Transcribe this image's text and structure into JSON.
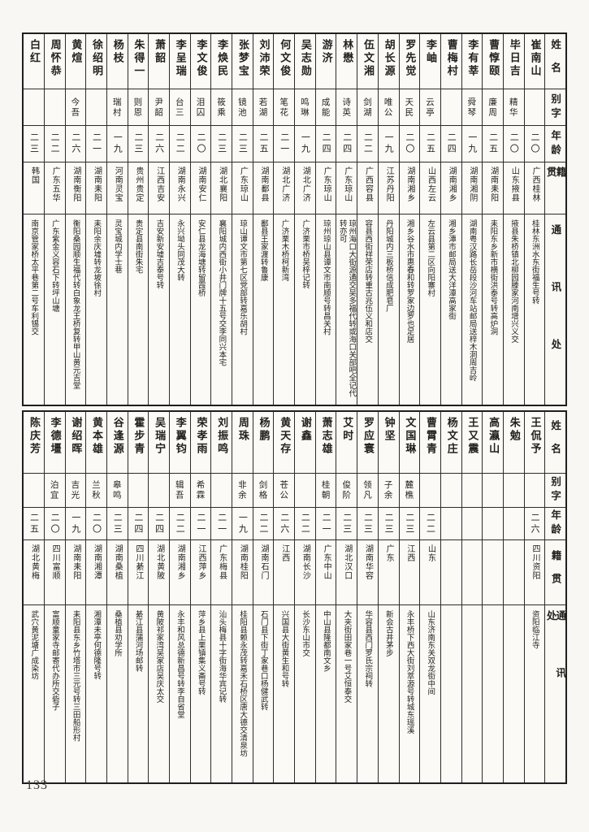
{
  "page_number": "133",
  "headers": {
    "name": "姓名",
    "zi": "别字",
    "age": "年龄",
    "origin": "籍贯",
    "addr": "通讯处"
  },
  "sections": [
    {
      "persons": [
        {
          "name": "崔南山",
          "zi": "",
          "age": "二〇",
          "origin": "广西桂林",
          "addr": "桂林东洲水东街福生号转"
        },
        {
          "name": "毕日吉",
          "zi": "精华",
          "age": "二〇",
          "origin": "山东掖县",
          "addr": "掖县朱桥镇北柳园滕家河南增兴义交"
        },
        {
          "name": "曹惇颐",
          "zi": "廉周",
          "age": "二五",
          "origin": "湖南耒阳",
          "addr": "耒阳东乡新市横街洪泰号转高炉洞"
        },
        {
          "name": "李有莘",
          "zi": "舜琴",
          "age": "一九",
          "origin": "湖南湘阴",
          "addr": "湖南粤汉路长岳段沙河车站邮局送梓木洞周吉岭"
        },
        {
          "name": "曹梅村",
          "zi": "",
          "age": "二四",
          "origin": "湖南湘乡",
          "addr": "湘乡潭市邮局送大洋潭高家街"
        },
        {
          "name": "李岫",
          "zi": "云亭",
          "age": "二五",
          "origin": "山西左云",
          "addr": "左云县第二区向阳寨村"
        },
        {
          "name": "罗先觉",
          "zi": "天民",
          "age": "二〇",
          "origin": "湖南湘乡",
          "addr": "湘乡谷水市惠春和转罗家边罗也足居"
        },
        {
          "name": "胡长源",
          "zi": "唯公",
          "age": "一九",
          "origin": "江苏丹阳",
          "addr": "丹阳城内三板桥信成肥皂厂"
        },
        {
          "name": "伍文湘",
          "zi": "剑湖",
          "age": "二二",
          "origin": "广西容县",
          "addr": "容县西街祥荣店转重古兆伍义和店交"
        },
        {
          "name": "林懋",
          "zi": "诗英",
          "age": "二四",
          "origin": "广东琼山",
          "addr": "琼州海口大街源通交吴多福代转或海口关部吧全记代转亦可"
        },
        {
          "name": "游济",
          "zi": "成能",
          "age": "二四",
          "origin": "广东琼山",
          "addr": "琼州琼山县谭文市南顺号转昌关村"
        },
        {
          "name": "吴志勋",
          "zi": "鸣琳",
          "age": "一九",
          "origin": "湖北广济",
          "addr": "广济栗市桥吴梓记转"
        },
        {
          "name": "何文俊",
          "zi": "笔花",
          "age": "二一",
          "origin": "湖北广济",
          "addr": "广济栗木桥柯新湾"
        },
        {
          "name": "刘沛荣",
          "zi": "若湖",
          "age": "二五",
          "origin": "湖南鄱县",
          "addr": "鄱县王家渡转鲁康"
        },
        {
          "name": "张梦宝",
          "zi": "镜池",
          "age": "二三",
          "origin": "广东琼山",
          "addr": "琼山谭文市第七区党部转嘉乐胡村"
        },
        {
          "name": "李焕民",
          "zi": "筱乘",
          "age": "二三",
          "origin": "湖北襄阳",
          "addr": "襄阳城内西街小井门牌十五号交李同兴本宅"
        },
        {
          "name": "李文俊",
          "zi": "泪囚",
          "age": "二〇",
          "origin": "湖南安仁",
          "addr": "安仁县龙海塘转留霞桥"
        },
        {
          "name": "李呈瑞",
          "zi": "台三",
          "age": "二二",
          "origin": "湖南永兴",
          "addr": "永兴坳头同茂大转"
        },
        {
          "name": "萧韶",
          "zi": "尹韶",
          "age": "二六",
          "origin": "江西吉安",
          "addr": "吉安新安墟吉泰号转"
        },
        {
          "name": "朱得一",
          "zi": "则恩",
          "age": "二三",
          "origin": "贵州贵定",
          "addr": "贵定县南街朱宅"
        },
        {
          "name": "杨枝",
          "zi": "瑞村",
          "age": "一九",
          "origin": "河南灵宝",
          "addr": "灵宝城内学士巷"
        },
        {
          "name": "徐绍明",
          "zi": "",
          "age": "二一",
          "origin": "湖南耒阳",
          "addr": "耒阳余庆墟转龙坡徐村"
        },
        {
          "name": "黄煊",
          "zi": "今吾",
          "age": "二六",
          "origin": "湖南衡阳",
          "addr": "衡阳桑园顺生福代转白象龙王桥复转甲山黄元吉堂"
        },
        {
          "name": "周怀恭",
          "zi": "",
          "age": "二二",
          "origin": "广东五华",
          "addr": "广东紫金义容石下转坪山塘"
        },
        {
          "name": "白红",
          "zi": "",
          "age": "二三",
          "origin": "韩国",
          "addr": "南京管家桥太平巷第二号车利锡交"
        }
      ]
    },
    {
      "persons": [
        {
          "name": "王侃予",
          "zi": "",
          "age": "二六",
          "origin": "四川资阳",
          "addr": "资阳临江寺"
        },
        {
          "name": "朱勉",
          "zi": "",
          "age": "",
          "origin": "",
          "addr": ""
        },
        {
          "name": "高瀛山",
          "zi": "",
          "age": "",
          "origin": "",
          "addr": ""
        },
        {
          "name": "王又震",
          "zi": "",
          "age": "",
          "origin": "",
          "addr": ""
        },
        {
          "name": "杨文庄",
          "zi": "",
          "age": "",
          "origin": "",
          "addr": ""
        },
        {
          "name": "曹霄青",
          "zi": "",
          "age": "二二",
          "origin": "山东",
          "addr": "山东济南东关双龙街中间"
        },
        {
          "name": "文国琳",
          "zi": "麓樵",
          "age": "二三",
          "origin": "江西",
          "addr": "永丰桥下西大街刘萃源号转城东瑶溪"
        },
        {
          "name": "钟坚",
          "zi": "子余",
          "age": "二三",
          "origin": "广东",
          "addr": "新会古井茅步"
        },
        {
          "name": "罗应寰",
          "zi": "领凡",
          "age": "二三",
          "origin": "湖南华容",
          "addr": "华容县西门罗氏宗祠转"
        },
        {
          "name": "艾时",
          "zi": "俊阶",
          "age": "二三",
          "origin": "湖北汉口",
          "addr": "大夹街田家巷一号艾恒泰交"
        },
        {
          "name": "萧志雄",
          "zi": "桂朝",
          "age": "二一",
          "origin": "广东中山",
          "addr": "中山县隆都南文乡"
        },
        {
          "name": "谢鑫",
          "zi": "",
          "age": "二二",
          "origin": "湖南长沙",
          "addr": "长沙东山市交"
        },
        {
          "name": "黄天存",
          "zi": "苍公",
          "age": "二六",
          "origin": "江西",
          "addr": "兴国县大街黄生和号转"
        },
        {
          "name": "杨鹏",
          "zi": "剑格",
          "age": "二二",
          "origin": "湖南石门",
          "addr": "石门县下街丁家巷口杨健武转"
        },
        {
          "name": "周珠",
          "zi": "非余",
          "age": "一九",
          "origin": "湖南桂阳",
          "addr": "桂阳县赖永茂转嘉禾石桥区唐大德交清泉坊"
        },
        {
          "name": "刘振鸣",
          "zi": "",
          "age": "二一",
          "origin": "广东梅县",
          "addr": "汕头梅县十字街海华宾记转"
        },
        {
          "name": "荣孝雨",
          "zi": "希霖",
          "age": "二一",
          "origin": "江西萍乡",
          "addr": "萍乡县上栗镇集义斋号转"
        },
        {
          "name": "李翼钧",
          "zi": "辑吾",
          "age": "二二",
          "origin": "湖南湘乡",
          "addr": "永丰和风总德新昌号转李自省堂"
        },
        {
          "name": "吴瑞宁",
          "zi": "",
          "age": "二四",
          "origin": "湖北黄陂",
          "addr": "黄陂祁家湾吴家店吴庆太交"
        },
        {
          "name": "霍步青",
          "zi": "",
          "age": "二四",
          "origin": "四川綦江",
          "addr": "綦江县蒲河场邮转"
        },
        {
          "name": "谷逢源",
          "zi": "皋鸣",
          "age": "二三",
          "origin": "湖南桑植",
          "addr": "桑植县劝学所"
        },
        {
          "name": "黄本雄",
          "zi": "兰秋",
          "age": "二〇",
          "origin": "湖南湘潭",
          "addr": "湘潭未亭何德隆号转"
        },
        {
          "name": "谢绍晖",
          "zi": "吉光",
          "age": "一九",
          "origin": "湖南耒阳",
          "addr": "耒阳县东乡竹塔市三元号转三田船形村"
        },
        {
          "name": "李德壃",
          "zi": "泊宜",
          "age": "二〇",
          "origin": "四川富顺",
          "addr": "富顺童家寺邮寄代办所交砦子"
        },
        {
          "name": "陈庆芳",
          "zi": "",
          "age": "二五",
          "origin": "湖北黄梅",
          "addr": "武穴黄泥塘广成染坊"
        }
      ]
    }
  ]
}
